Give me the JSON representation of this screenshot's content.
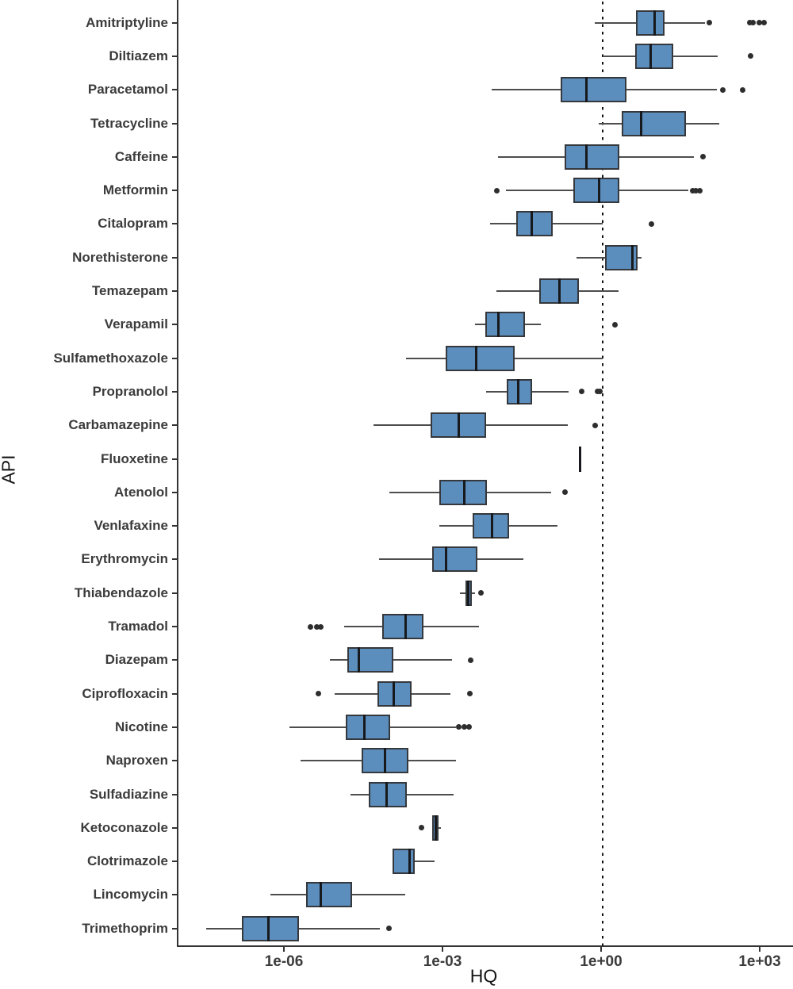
{
  "chart_data": {
    "type": "boxplot-horizontal",
    "title": "",
    "xlabel": "HQ",
    "ylabel": "API",
    "x_scale": "log10",
    "x_axis_range_log10": [
      -8.025,
      3.6
    ],
    "grid": false,
    "reference_line": {
      "x": 1,
      "style": "dotted",
      "color": "#101010"
    },
    "x_ticks": [
      {
        "label": "1e-06",
        "value": 1e-06
      },
      {
        "label": "1e-03",
        "value": 0.001
      },
      {
        "label": "1e+00",
        "value": 1
      },
      {
        "label": "1e+03",
        "value": 1000
      }
    ],
    "colors": {
      "box_fill": "#5b8dbd",
      "box_border": "#35383c",
      "median": "#17191c",
      "whisker": "#4d4d4d",
      "outlier": "#2e2e2e",
      "axis": "#333333",
      "tick_text": "#3b3b3b"
    },
    "series": [
      {
        "label": "Amitriptyline",
        "whisker_low": 0.7,
        "q1": 4.2,
        "median": 9.5,
        "q3": 15,
        "whisker_high": 85,
        "outliers": [
          105,
          615,
          690,
          910,
          1130
        ]
      },
      {
        "label": "Diltiazem",
        "whisker_low": 1.0,
        "q1": 4.1,
        "median": 8.0,
        "q3": 22,
        "whisker_high": 148,
        "outliers": [
          630
        ]
      },
      {
        "label": "Paracetamol",
        "whisker_low": 0.008,
        "q1": 0.16,
        "median": 0.5,
        "q3": 2.8,
        "whisker_high": 145,
        "outliers": [
          190,
          450
        ]
      },
      {
        "label": "Tetracycline",
        "whisker_low": 0.83,
        "q1": 2.3,
        "median": 5.4,
        "q3": 38,
        "whisker_high": 160,
        "outliers": []
      },
      {
        "label": "Caffeine",
        "whisker_low": 0.0105,
        "q1": 0.19,
        "median": 0.5,
        "q3": 2.1,
        "whisker_high": 54,
        "outliers": [
          78
        ]
      },
      {
        "label": "Metformin",
        "whisker_low": 0.015,
        "q1": 0.28,
        "median": 0.85,
        "q3": 2.1,
        "whisker_high": 42,
        "outliers": [
          0.0101,
          50,
          58,
          68
        ]
      },
      {
        "label": "Citalopram",
        "whisker_low": 0.0073,
        "q1": 0.0235,
        "median": 0.046,
        "q3": 0.114,
        "whisker_high": 1.0,
        "outliers": [
          8.4
        ]
      },
      {
        "label": "Norethisterone",
        "whisker_low": 0.32,
        "q1": 1.1,
        "median": 3.7,
        "q3": 4.6,
        "whisker_high": 5.4,
        "outliers": []
      },
      {
        "label": "Temazepam",
        "whisker_low": 0.0098,
        "q1": 0.063,
        "median": 0.15,
        "q3": 0.35,
        "whisker_high": 2.0,
        "outliers": []
      },
      {
        "label": "Verapamil",
        "whisker_low": 0.0038,
        "q1": 0.006,
        "median": 0.0107,
        "q3": 0.034,
        "whisker_high": 0.068,
        "outliers": [
          1.7
        ]
      },
      {
        "label": "Sulfamethoxazole",
        "whisker_low": 0.00019,
        "q1": 0.00107,
        "median": 0.004,
        "q3": 0.0214,
        "whisker_high": 1.0,
        "outliers": []
      },
      {
        "label": "Propranolol",
        "whisker_low": 0.0062,
        "q1": 0.0153,
        "median": 0.025,
        "q3": 0.047,
        "whisker_high": 0.23,
        "outliers": [
          0.4,
          0.8,
          0.9
        ]
      },
      {
        "label": "Carbamazepine",
        "whisker_low": 4.7e-05,
        "q1": 0.00056,
        "median": 0.0019,
        "q3": 0.0063,
        "whisker_high": 0.22,
        "outliers": [
          0.71
        ]
      },
      {
        "label": "Fluoxetine",
        "whisker_low": 0.38,
        "q1": 0.38,
        "median": 0.38,
        "q3": 0.38,
        "whisker_high": 0.38,
        "outliers": []
      },
      {
        "label": "Atenolol",
        "whisker_low": 9.2e-05,
        "q1": 0.00082,
        "median": 0.0024,
        "q3": 0.0064,
        "whisker_high": 0.106,
        "outliers": [
          0.197
        ]
      },
      {
        "label": "Venlafaxine",
        "whisker_low": 0.00082,
        "q1": 0.0035,
        "median": 0.008,
        "q3": 0.017,
        "whisker_high": 0.138,
        "outliers": []
      },
      {
        "label": "Erythromycin",
        "whisker_low": 5.9e-05,
        "q1": 0.00059,
        "median": 0.0011,
        "q3": 0.0042,
        "whisker_high": 0.032,
        "outliers": []
      },
      {
        "label": "Thiabendazole",
        "whisker_low": 0.00197,
        "q1": 0.0025,
        "median": 0.0029,
        "q3": 0.0033,
        "whisker_high": 0.0038,
        "outliers": [
          0.0049
        ]
      },
      {
        "label": "Tramadol",
        "whisker_low": 1.3e-05,
        "q1": 6.7e-05,
        "median": 0.00019,
        "q3": 0.00041,
        "whisker_high": 0.0046,
        "outliers": [
          3e-06,
          3.9e-06,
          4.6e-06
        ]
      },
      {
        "label": "Diazepam",
        "whisker_low": 6.8e-06,
        "q1": 1.5e-05,
        "median": 2.4e-05,
        "q3": 0.00011,
        "whisker_high": 0.0014,
        "outliers": [
          0.0032
        ]
      },
      {
        "label": "Ciprofloxacin",
        "whisker_low": 8.6e-06,
        "q1": 5.5e-05,
        "median": 0.00011,
        "q3": 0.00024,
        "whisker_high": 0.0013,
        "outliers": [
          4.2e-06,
          0.0031
        ]
      },
      {
        "label": "Nicotine",
        "whisker_low": 1.2e-06,
        "q1": 1.4e-05,
        "median": 3.1e-05,
        "q3": 9.4e-05,
        "whisker_high": 0.0017,
        "outliers": [
          0.0019,
          0.0024,
          0.003
        ]
      },
      {
        "label": "Naproxen",
        "whisker_low": 1.9e-06,
        "q1": 2.75e-05,
        "median": 7.7e-05,
        "q3": 0.00021,
        "whisker_high": 0.0017,
        "outliers": []
      },
      {
        "label": "Sulfadiazine",
        "whisker_low": 1.7e-05,
        "q1": 3.7e-05,
        "median": 8.2e-05,
        "q3": 0.0002,
        "whisker_high": 0.0015,
        "outliers": []
      },
      {
        "label": "Ketoconazole",
        "whisker_low": 0.00059,
        "q1": 0.00059,
        "median": 0.0007,
        "q3": 0.00078,
        "whisker_high": 0.00087,
        "outliers": [
          0.00037
        ]
      },
      {
        "label": "Clotrimazole",
        "whisker_low": 0.000107,
        "q1": 0.000107,
        "median": 0.000226,
        "q3": 0.000275,
        "whisker_high": 0.00066,
        "outliers": []
      },
      {
        "label": "Lincomycin",
        "whisker_low": 5.1e-07,
        "q1": 2.45e-06,
        "median": 4.7e-06,
        "q3": 1.85e-05,
        "whisker_high": 0.000187,
        "outliers": []
      },
      {
        "label": "Trimethoprim",
        "whisker_low": 3.2e-08,
        "q1": 1.5e-07,
        "median": 4.7e-07,
        "q3": 1.8e-06,
        "whisker_high": 6e-05,
        "outliers": [
          9e-05
        ]
      }
    ]
  }
}
